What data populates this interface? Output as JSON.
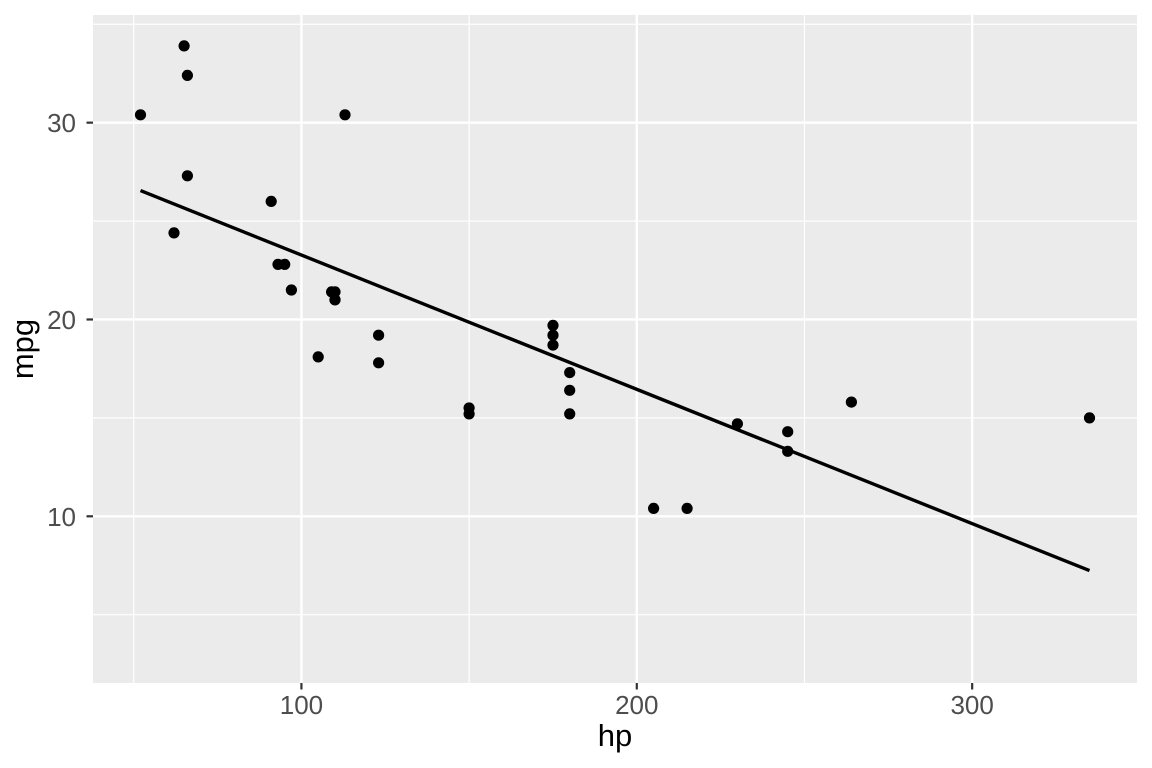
{
  "chart_data": {
    "type": "scatter",
    "title": "",
    "xlabel": "hp",
    "ylabel": "mpg",
    "x_ticks": [
      100,
      200,
      300
    ],
    "x_minor_ticks": [
      50,
      150,
      250
    ],
    "y_ticks": [
      10,
      20,
      30
    ],
    "y_minor_ticks": [
      5,
      15,
      25,
      35
    ],
    "xlim": [
      37.85,
      349.15
    ],
    "ylim": [
      1.53,
      35.47
    ],
    "grid": "on",
    "legend": "none",
    "points": [
      {
        "hp": 110,
        "mpg": 21.0
      },
      {
        "hp": 110,
        "mpg": 21.0
      },
      {
        "hp": 93,
        "mpg": 22.8
      },
      {
        "hp": 110,
        "mpg": 21.4
      },
      {
        "hp": 175,
        "mpg": 18.7
      },
      {
        "hp": 105,
        "mpg": 18.1
      },
      {
        "hp": 245,
        "mpg": 14.3
      },
      {
        "hp": 62,
        "mpg": 24.4
      },
      {
        "hp": 95,
        "mpg": 22.8
      },
      {
        "hp": 123,
        "mpg": 19.2
      },
      {
        "hp": 123,
        "mpg": 17.8
      },
      {
        "hp": 180,
        "mpg": 16.4
      },
      {
        "hp": 180,
        "mpg": 17.3
      },
      {
        "hp": 180,
        "mpg": 15.2
      },
      {
        "hp": 205,
        "mpg": 10.4
      },
      {
        "hp": 215,
        "mpg": 10.4
      },
      {
        "hp": 230,
        "mpg": 14.7
      },
      {
        "hp": 66,
        "mpg": 32.4
      },
      {
        "hp": 52,
        "mpg": 30.4
      },
      {
        "hp": 65,
        "mpg": 33.9
      },
      {
        "hp": 97,
        "mpg": 21.5
      },
      {
        "hp": 150,
        "mpg": 15.5
      },
      {
        "hp": 150,
        "mpg": 15.2
      },
      {
        "hp": 245,
        "mpg": 13.3
      },
      {
        "hp": 175,
        "mpg": 19.2
      },
      {
        "hp": 66,
        "mpg": 27.3
      },
      {
        "hp": 91,
        "mpg": 26.0
      },
      {
        "hp": 113,
        "mpg": 30.4
      },
      {
        "hp": 264,
        "mpg": 15.8
      },
      {
        "hp": 175,
        "mpg": 19.7
      },
      {
        "hp": 335,
        "mpg": 15.0
      },
      {
        "hp": 109,
        "mpg": 21.4
      }
    ],
    "trend_line": {
      "type": "linear",
      "x_start": 52,
      "y_start": 26.55,
      "x_end": 335,
      "y_end": 7.24
    },
    "colors": {
      "panel_background": "#EBEBEB",
      "gridline": "#FFFFFF",
      "point": "#000000",
      "trend_line": "#000000",
      "tick_mark": "#333333",
      "tick_label": "#4D4D4D",
      "axis_title": "#000000"
    }
  }
}
